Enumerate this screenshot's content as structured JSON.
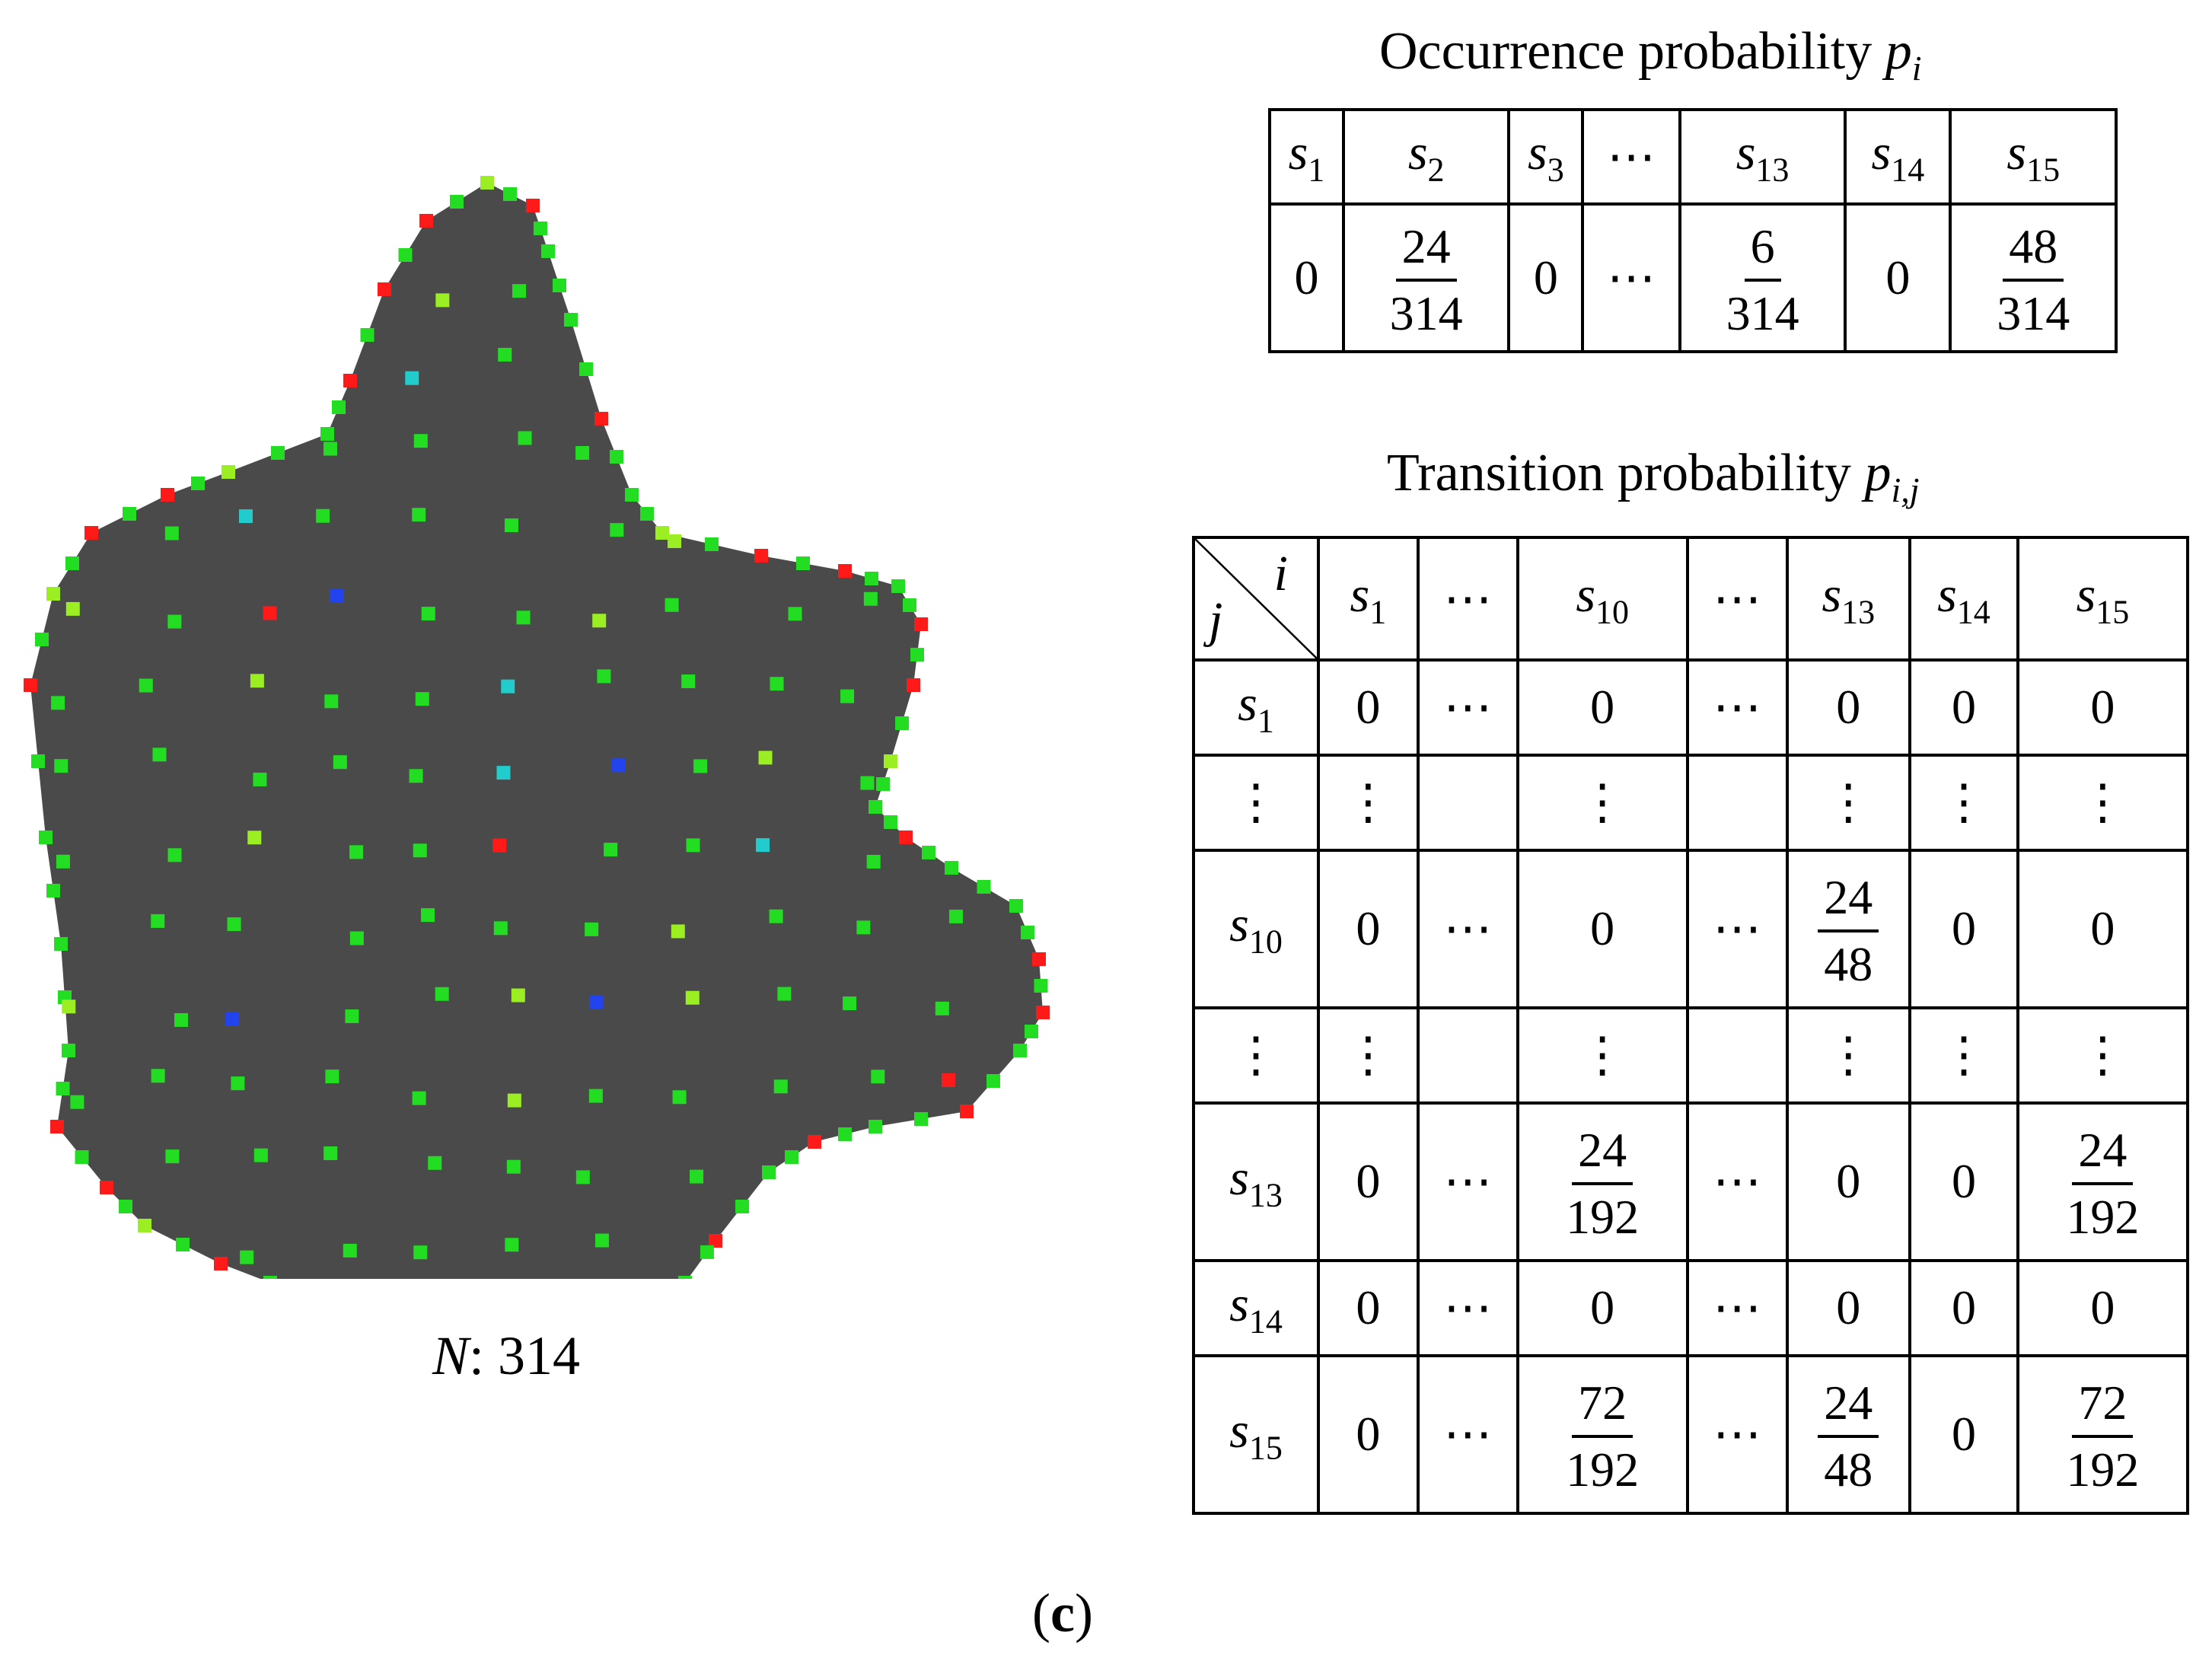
{
  "figure": {
    "panel_label": "c",
    "n_label": {
      "var": "N",
      "rest": ": 314"
    },
    "shape": {
      "fill": "#4a4a4a",
      "marker_colors": [
        "#ff1a1a",
        "#22dd22",
        "#9aee22",
        "#22cccc",
        "#2244ee",
        "#ff9900"
      ]
    }
  },
  "occurrence": {
    "title": {
      "text": "Occurrence probability ",
      "var": "p",
      "sub": "i"
    },
    "columns": [
      {
        "base": "s",
        "sub": "1"
      },
      {
        "base": "s",
        "sub": "2"
      },
      {
        "base": "s",
        "sub": "3"
      },
      {
        "text": "⋯"
      },
      {
        "base": "s",
        "sub": "13"
      },
      {
        "base": "s",
        "sub": "14"
      },
      {
        "base": "s",
        "sub": "15"
      }
    ],
    "values": [
      {
        "text": "0"
      },
      {
        "num": "24",
        "den": "314"
      },
      {
        "text": "0"
      },
      {
        "text": "⋯"
      },
      {
        "num": "6",
        "den": "314"
      },
      {
        "text": "0"
      },
      {
        "num": "48",
        "den": "314"
      }
    ]
  },
  "transition": {
    "title": {
      "text": "Transition probability ",
      "var": "p",
      "sub": "i,j"
    },
    "corner": {
      "row_axis": "j",
      "col_axis": "i"
    },
    "columns": [
      {
        "base": "s",
        "sub": "1"
      },
      {
        "text": "⋯"
      },
      {
        "base": "s",
        "sub": "10"
      },
      {
        "text": "⋯"
      },
      {
        "base": "s",
        "sub": "13"
      },
      {
        "base": "s",
        "sub": "14"
      },
      {
        "base": "s",
        "sub": "15"
      }
    ],
    "rows": [
      {
        "label": {
          "base": "s",
          "sub": "1"
        },
        "cells": [
          {
            "text": "0"
          },
          {
            "text": "⋯"
          },
          {
            "text": "0"
          },
          {
            "text": "⋯"
          },
          {
            "text": "0"
          },
          {
            "text": "0"
          },
          {
            "text": "0"
          }
        ]
      },
      {
        "label": {
          "text": "⋮"
        },
        "cells": [
          {
            "text": "⋮"
          },
          {
            "text": ""
          },
          {
            "text": "⋮"
          },
          {
            "text": ""
          },
          {
            "text": "⋮"
          },
          {
            "text": "⋮"
          },
          {
            "text": "⋮"
          }
        ]
      },
      {
        "label": {
          "base": "s",
          "sub": "10"
        },
        "cells": [
          {
            "text": "0"
          },
          {
            "text": "⋯"
          },
          {
            "text": "0"
          },
          {
            "text": "⋯"
          },
          {
            "num": "24",
            "den": "48"
          },
          {
            "text": "0"
          },
          {
            "text": "0"
          }
        ]
      },
      {
        "label": {
          "text": "⋮"
        },
        "cells": [
          {
            "text": "⋮"
          },
          {
            "text": ""
          },
          {
            "text": "⋮"
          },
          {
            "text": ""
          },
          {
            "text": "⋮"
          },
          {
            "text": "⋮"
          },
          {
            "text": "⋮"
          }
        ]
      },
      {
        "label": {
          "base": "s",
          "sub": "13"
        },
        "cells": [
          {
            "text": "0"
          },
          {
            "text": "⋯"
          },
          {
            "num": "24",
            "den": "192"
          },
          {
            "text": "⋯"
          },
          {
            "text": "0"
          },
          {
            "text": "0"
          },
          {
            "num": "24",
            "den": "192"
          }
        ]
      },
      {
        "label": {
          "base": "s",
          "sub": "14"
        },
        "cells": [
          {
            "text": "0"
          },
          {
            "text": "⋯"
          },
          {
            "text": "0"
          },
          {
            "text": "⋯"
          },
          {
            "text": "0"
          },
          {
            "text": "0"
          },
          {
            "text": "0"
          }
        ]
      },
      {
        "label": {
          "base": "s",
          "sub": "15"
        },
        "cells": [
          {
            "text": "0"
          },
          {
            "text": "⋯"
          },
          {
            "num": "72",
            "den": "192"
          },
          {
            "text": "⋯"
          },
          {
            "num": "24",
            "den": "48"
          },
          {
            "text": "0"
          },
          {
            "num": "72",
            "den": "192"
          }
        ]
      }
    ]
  }
}
